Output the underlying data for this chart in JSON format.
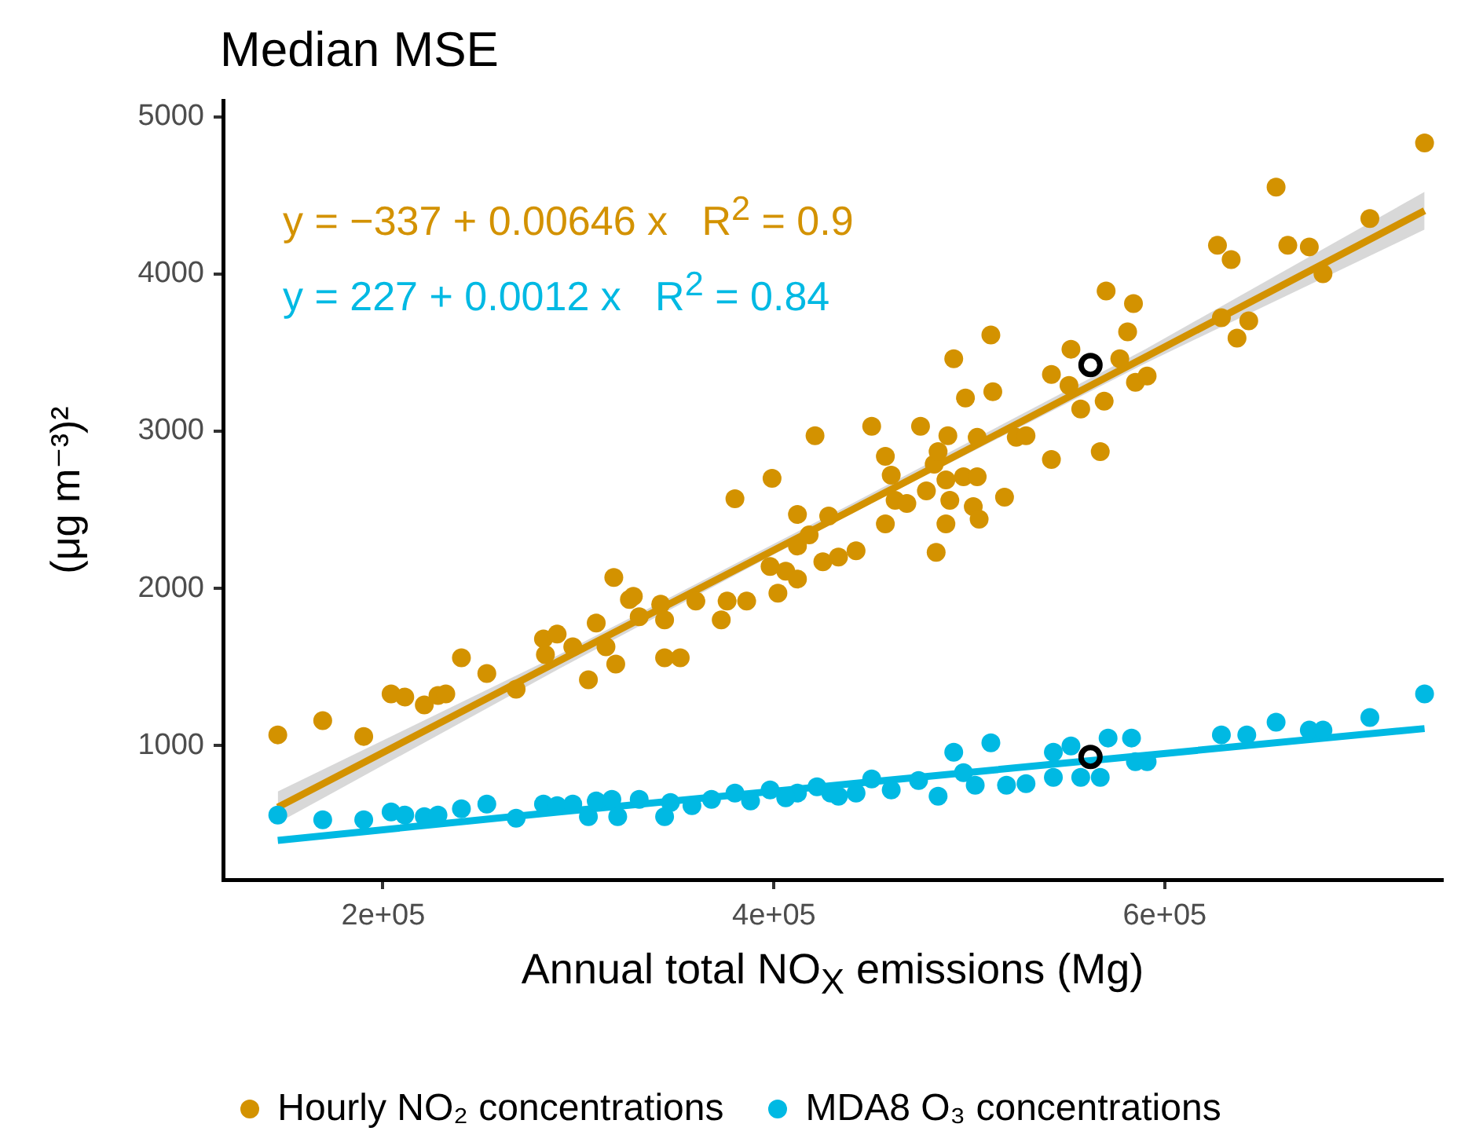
{
  "chart_data": {
    "type": "scatter",
    "title": "Median MSE",
    "xlabel": "Annual total NO$_{X}$ emissions (Mg)",
    "ylabel": "(μg m⁻³)²",
    "xlim": [
      118000,
      742000
    ],
    "xticks": [
      {
        "value": 200000,
        "label": "2e+05"
      },
      {
        "value": 400000,
        "label": "4e+05"
      },
      {
        "value": 600000,
        "label": "6e+05"
      }
    ],
    "ylim": [
      150,
      5100
    ],
    "yticks": [
      1000,
      2000,
      3000,
      4000,
      5000
    ],
    "grid": false,
    "legend": "bottom",
    "marker": "circle",
    "line_style": "solid",
    "annotations": [
      "y = −337 + 0.00646 x   R$^{2}$ = 0.9",
      "y = 227 + 0.0012 x   R$^{2}$ = 0.84"
    ],
    "series": [
      {
        "name": "Hourly NO₂ concentrations",
        "color": "#d39200",
        "x": [
          146000,
          169000,
          190000,
          204000,
          211000,
          221000,
          228000,
          232000,
          240000,
          253000,
          268000,
          282000,
          289000,
          283000,
          297000,
          305000,
          309000,
          314000,
          319000,
          318000,
          326000,
          328000,
          331000,
          342000,
          344000,
          344000,
          352000,
          360000,
          373000,
          376000,
          380000,
          386000,
          398000,
          399000,
          402000,
          406000,
          412000,
          412000,
          412000,
          418000,
          421000,
          425000,
          428000,
          433000,
          442000,
          450000,
          457000,
          457000,
          460000,
          462000,
          468000,
          475000,
          478000,
          482000,
          483000,
          484000,
          488000,
          488000,
          489000,
          490000,
          492000,
          497000,
          498000,
          502000,
          504000,
          504000,
          505000,
          511000,
          512000,
          518000,
          524000,
          529000,
          542000,
          542000,
          551000,
          552000,
          557000,
          567000,
          569000,
          570000,
          577000,
          581000,
          584000,
          585000,
          591000,
          627000,
          629000,
          634000,
          637000,
          643000,
          657000,
          663000,
          674000,
          681000,
          705000,
          733000
        ],
        "values": [
          1070,
          1160,
          1060,
          1330,
          1310,
          1260,
          1320,
          1330,
          1560,
          1460,
          1360,
          1680,
          1710,
          1580,
          1630,
          1420,
          1780,
          1630,
          1520,
          2070,
          1930,
          1950,
          1820,
          1900,
          1800,
          1560,
          1560,
          1920,
          1800,
          1920,
          2570,
          1920,
          2140,
          2700,
          1970,
          2110,
          2270,
          2470,
          2060,
          2340,
          2970,
          2170,
          2460,
          2200,
          2240,
          3030,
          2840,
          2410,
          2720,
          2560,
          2540,
          3030,
          2620,
          2790,
          2230,
          2870,
          2690,
          2410,
          2970,
          2560,
          3460,
          2710,
          3210,
          2520,
          2960,
          2710,
          2440,
          3610,
          3250,
          2580,
          2960,
          2970,
          3360,
          2820,
          3290,
          3520,
          3140,
          2870,
          3190,
          3890,
          3460,
          3630,
          3810,
          3310,
          3350,
          4180,
          3720,
          4090,
          3590,
          3700,
          4550,
          4180,
          4170,
          4000,
          4350,
          4830
        ]
      },
      {
        "name": "MDA8 O₃ concentrations",
        "color": "#00b9e3",
        "x": [
          146000,
          169000,
          190000,
          204000,
          211000,
          221000,
          228000,
          240000,
          253000,
          268000,
          282000,
          289000,
          297000,
          305000,
          309000,
          317000,
          320000,
          331000,
          344000,
          347000,
          358000,
          368000,
          380000,
          388000,
          398000,
          412000,
          422000,
          429000,
          406000,
          433000,
          442000,
          450000,
          460000,
          474000,
          484000,
          492000,
          497000,
          503000,
          511000,
          519000,
          529000,
          543000,
          552000,
          543000,
          557000,
          567000,
          571000,
          583000,
          585000,
          591000,
          629000,
          642000,
          657000,
          674000,
          681000,
          705000,
          733000
        ],
        "values": [
          560,
          530,
          530,
          580,
          560,
          550,
          560,
          600,
          630,
          540,
          630,
          620,
          630,
          550,
          650,
          660,
          550,
          660,
          550,
          640,
          620,
          660,
          700,
          650,
          720,
          700,
          740,
          700,
          670,
          680,
          700,
          790,
          720,
          780,
          680,
          960,
          830,
          750,
          1020,
          750,
          760,
          960,
          1000,
          800,
          800,
          800,
          1050,
          1050,
          900,
          900,
          1070,
          1070,
          1150,
          1100,
          1100,
          1180,
          1330
        ]
      },
      {
        "type": "line",
        "marker": "none",
        "color": "#d39200",
        "x": [
          146000,
          290000,
          440000,
          590000,
          733000
        ],
        "values": [
          610,
          1540,
          2500,
          3470,
          4400
        ],
        "lower": [
          510,
          1490,
          2480,
          3430,
          4280
        ],
        "upper": [
          710,
          1580,
          2540,
          3520,
          4520
        ]
      },
      {
        "type": "line",
        "marker": "none",
        "color": "#00b9e3",
        "x": [
          146000,
          290000,
          440000,
          590000,
          733000
        ],
        "values": [
          400,
          580,
          760,
          940,
          1110
        ]
      },
      {
        "color": "#000000",
        "x": [
          562000,
          562000
        ],
        "values": [
          3420,
          930
        ]
      }
    ]
  }
}
